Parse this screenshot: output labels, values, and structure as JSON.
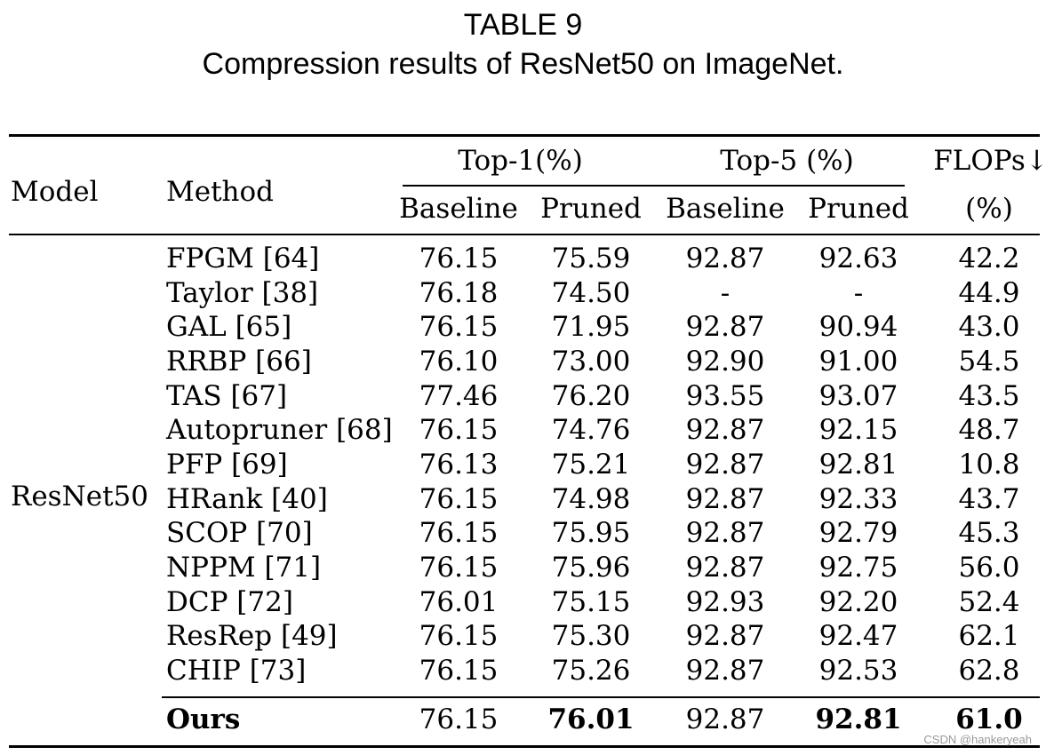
{
  "caption": {
    "label": "TABLE 9",
    "text": "Compression results of ResNet50 on ImageNet."
  },
  "table": {
    "headers": {
      "model": "Model",
      "method": "Method",
      "top1": "Top-1(%)",
      "top5": "Top-5 (%)",
      "flops": "FLOPs↓",
      "flops_unit": "(%)",
      "baseline": "Baseline",
      "pruned": "Pruned"
    },
    "model_name": "ResNet50",
    "rows": [
      {
        "method": "FPGM [64]",
        "top1_base": "76.15",
        "top1_pruned": "75.59",
        "top5_base": "92.87",
        "top5_pruned": "92.63",
        "flops": "42.2"
      },
      {
        "method": "Taylor [38]",
        "top1_base": "76.18",
        "top1_pruned": "74.50",
        "top5_base": "-",
        "top5_pruned": "-",
        "flops": "44.9"
      },
      {
        "method": "GAL [65]",
        "top1_base": "76.15",
        "top1_pruned": "71.95",
        "top5_base": "92.87",
        "top5_pruned": "90.94",
        "flops": "43.0"
      },
      {
        "method": "RRBP [66]",
        "top1_base": "76.10",
        "top1_pruned": "73.00",
        "top5_base": "92.90",
        "top5_pruned": "91.00",
        "flops": "54.5"
      },
      {
        "method": "TAS [67]",
        "top1_base": "77.46",
        "top1_pruned": "76.20",
        "top5_base": "93.55",
        "top5_pruned": "93.07",
        "flops": "43.5"
      },
      {
        "method": "Autopruner [68]",
        "top1_base": "76.15",
        "top1_pruned": "74.76",
        "top5_base": "92.87",
        "top5_pruned": "92.15",
        "flops": "48.7"
      },
      {
        "method": "PFP [69]",
        "top1_base": "76.13",
        "top1_pruned": "75.21",
        "top5_base": "92.87",
        "top5_pruned": "92.81",
        "flops": "10.8"
      },
      {
        "method": "HRank [40]",
        "top1_base": "76.15",
        "top1_pruned": "74.98",
        "top5_base": "92.87",
        "top5_pruned": "92.33",
        "flops": "43.7"
      },
      {
        "method": "SCOP [70]",
        "top1_base": "76.15",
        "top1_pruned": "75.95",
        "top5_base": "92.87",
        "top5_pruned": "92.79",
        "flops": "45.3"
      },
      {
        "method": "NPPM [71]",
        "top1_base": "76.15",
        "top1_pruned": "75.96",
        "top5_base": "92.87",
        "top5_pruned": "92.75",
        "flops": "56.0"
      },
      {
        "method": "DCP [72]",
        "top1_base": "76.01",
        "top1_pruned": "75.15",
        "top5_base": "92.93",
        "top5_pruned": "92.20",
        "flops": "52.4"
      },
      {
        "method": "ResRep [49]",
        "top1_base": "76.15",
        "top1_pruned": "75.30",
        "top5_base": "92.87",
        "top5_pruned": "92.47",
        "flops": "62.1"
      },
      {
        "method": "CHIP [73]",
        "top1_base": "76.15",
        "top1_pruned": "75.26",
        "top5_base": "92.87",
        "top5_pruned": "92.53",
        "flops": "62.8"
      }
    ],
    "ours": {
      "method": "Ours",
      "top1_base": "76.15",
      "top1_pruned": "76.01",
      "top5_base": "92.87",
      "top5_pruned": "92.81",
      "flops": "61.0"
    }
  },
  "watermark": "CSDN @hankeryeah"
}
